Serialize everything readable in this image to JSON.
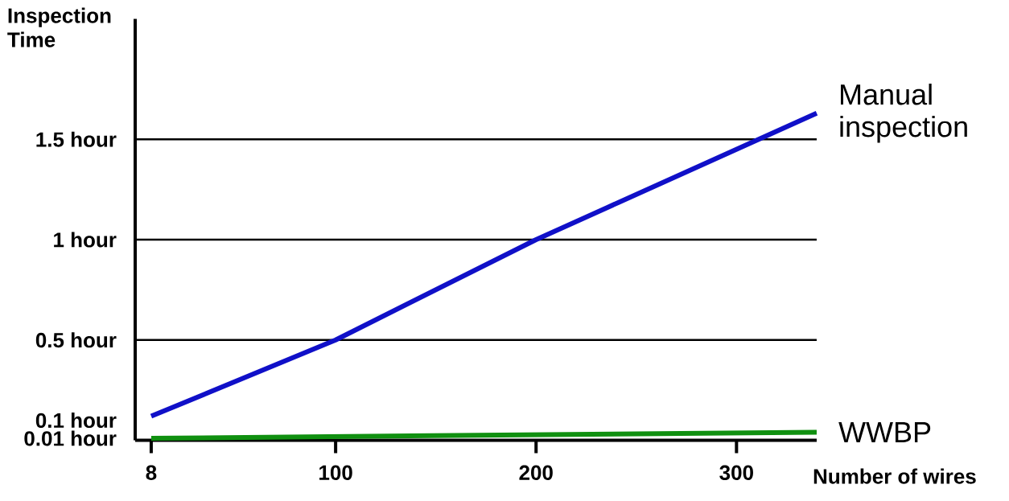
{
  "chart_data": {
    "type": "line",
    "xlabel": "Number of wires",
    "ylabel": "Inspection Time",
    "series": [
      {
        "name": "Manual inspection",
        "color": "#1010c8",
        "x": [
          8,
          100,
          200,
          340
        ],
        "values": [
          0.12,
          0.5,
          1.0,
          1.63
        ]
      },
      {
        "name": "WWBP",
        "color": "#109010",
        "x": [
          8,
          340
        ],
        "values": [
          0.01,
          0.04
        ]
      }
    ],
    "xlim": [
      0,
      340
    ],
    "ylim": [
      0,
      2.1
    ],
    "xticks": [
      8,
      100,
      200,
      300
    ],
    "yticks": [
      {
        "value": 0.01,
        "label": "0.01 hour"
      },
      {
        "value": 0.1,
        "label": "0.1 hour"
      },
      {
        "value": 0.5,
        "label": "0.5 hour"
      },
      {
        "value": 1,
        "label": "1 hour"
      },
      {
        "value": 1.5,
        "label": "1.5 hour"
      }
    ],
    "ref_lines": [
      {
        "axis": "y",
        "value": 0.5,
        "color": "#000000"
      },
      {
        "axis": "y",
        "value": 1,
        "color": "#000000"
      },
      {
        "axis": "y",
        "value": 1.5,
        "color": "#000000"
      }
    ],
    "marker": "none",
    "line_style": "solid"
  }
}
